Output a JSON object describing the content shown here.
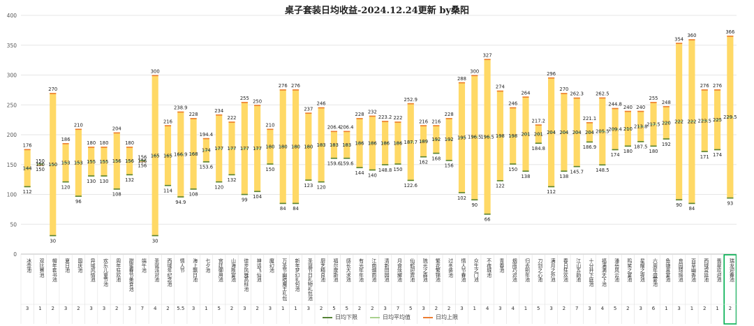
{
  "chart_data": {
    "type": "bar",
    "title": "桌子套装日均收益-2024.12.24更新 by桑阳",
    "ylim": [
      0,
      400
    ],
    "yticks": [
      0,
      50,
      100,
      150,
      200,
      250,
      300,
      350,
      400
    ],
    "legend": [
      "日均下限",
      "日均平均值",
      "日均上限"
    ],
    "legend_position": "bottom",
    "colors": {
      "bar": "#FFD966",
      "lower": "#548235",
      "avg": "#A9D18E",
      "upper": "#ED7D31",
      "highlight": "#00B050"
    },
    "highlight_index": 55,
    "categories": [
      "冰壶池",
      "双比赛池",
      "帽年套书池",
      "夏日池",
      "国庆池",
      "异域风情池",
      "欢乐儿童节池",
      "周年狂欢池",
      "甜蜜春节美食池",
      "端午池",
      "圣诞派对池",
      "西域年纪念池",
      "情人节",
      "海上飘日池",
      "七夕池",
      "宫廷御用池",
      "山海胜宴池",
      "徒步风雅高柱池",
      "神话飞仙池",
      "魔幻池",
      "万圣节幽暗魔王礼包",
      "新年梦幻礼包池",
      "圣诞节日礼物礼包池",
      "厨艺精良池",
      "福尔摩斯池",
      "感长大求池",
      "有光年年池",
      "江南烟雨池",
      "清新田园池",
      "月食炫耀池",
      "仙鹤迎宾池",
      "琉光之森池",
      "繁花繁锦池",
      "过冬装池",
      "情人节春池",
      "众生之门池",
      "不夜城池",
      "青春池",
      "烟雨巧迟池",
      "归去别年池",
      "刀剑之心池",
      "满月之外池",
      "春日狂欢池",
      "江山五韵池",
      "十分井下庭池",
      "福满满天下池",
      "潘岳风云池",
      "鸣笑之宴池",
      "星耀之夜池",
      "六周年盛宴池",
      "鱼塘喜宴池",
      "良园琼瑶池",
      "百草幽香池",
      "西域宫廷池",
      "翡翠欢迎池",
      "瑞龙迎春池"
    ],
    "lower": [
      112,
      150,
      30,
      120,
      96,
      130,
      130,
      108,
      132,
      156,
      30,
      114,
      94.9,
      108,
      153.6,
      120,
      132,
      99,
      104,
      150,
      84,
      84,
      123,
      120,
      159.6,
      159.6,
      144,
      140,
      148.8,
      150,
      122.6,
      162,
      168,
      156,
      102,
      90,
      66,
      122,
      150,
      138,
      184.8,
      112,
      138,
      145.7,
      186.9,
      148.5,
      174,
      180,
      187.5,
      180,
      192,
      90,
      84,
      171,
      174,
      93
    ],
    "avg": [
      144,
      150,
      150,
      153,
      153,
      155,
      155,
      156,
      156,
      156,
      165,
      165,
      166.9,
      168,
      174,
      177,
      177,
      177,
      177,
      180,
      180,
      180,
      180,
      183,
      183,
      183,
      186,
      186,
      186,
      186,
      187.7,
      189,
      192,
      192,
      195,
      196.5,
      196.5,
      198,
      198,
      201,
      201,
      204,
      204,
      204,
      204,
      205.5,
      209.4,
      210,
      213.8,
      217.5,
      220,
      222,
      222,
      223.5,
      225,
      229.5
    ],
    "upper": [
      176,
      150,
      270,
      186,
      210,
      180,
      180,
      204,
      180,
      156,
      300,
      216,
      238.9,
      228,
      194.4,
      234,
      222,
      255,
      250,
      210,
      276,
      276,
      237,
      246,
      206.4,
      206.4,
      228,
      232,
      223.2,
      222,
      252.9,
      216,
      216,
      228,
      288,
      300,
      327,
      274,
      246,
      264,
      217.2,
      296,
      270,
      262.3,
      221.1,
      262.5,
      244.8,
      240,
      240,
      255,
      248,
      354,
      360,
      276,
      276,
      366
    ],
    "counts": [
      3,
      1,
      2,
      3,
      2,
      3,
      3,
      2,
      3,
      7,
      4,
      2,
      5.5,
      3,
      1,
      5,
      2,
      3,
      2,
      3,
      1,
      1,
      3,
      2,
      5,
      5,
      2,
      2,
      3,
      7,
      5,
      3,
      2,
      2,
      3,
      1,
      4,
      3,
      4,
      1,
      5,
      3,
      2,
      7,
      3,
      4,
      5,
      2,
      3,
      6,
      1,
      3,
      1,
      2,
      1,
      2
    ]
  }
}
